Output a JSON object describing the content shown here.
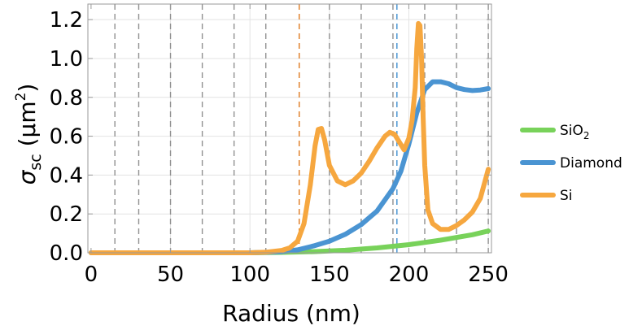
{
  "chart_data": {
    "type": "line",
    "xlabel": "Radius (nm)",
    "ylabel": {
      "sigma": "σ",
      "sub": "sc",
      "unit_open": " (μm",
      "unit_sup": "2",
      "unit_close": ")"
    },
    "xlim": [
      -2,
      252
    ],
    "ylim": [
      0,
      1.28
    ],
    "xticks": [
      0,
      50,
      100,
      150,
      200,
      250
    ],
    "xtick_labels": [
      "0",
      "50",
      "100",
      "150",
      "200",
      "250"
    ],
    "yticks": [
      0.0,
      0.2,
      0.4,
      0.6,
      0.8,
      1.0,
      1.2
    ],
    "ytick_labels": [
      "0.0",
      "0.2",
      "0.4",
      "0.6",
      "0.8",
      "1.0",
      "1.2"
    ],
    "grid": true,
    "legend_position": "right",
    "vertical_reference_lines": [
      {
        "x": 15,
        "color": "#909090"
      },
      {
        "x": 30,
        "color": "#909090"
      },
      {
        "x": 50,
        "color": "#909090"
      },
      {
        "x": 70,
        "color": "#909090"
      },
      {
        "x": 90,
        "color": "#909090"
      },
      {
        "x": 110,
        "color": "#909090"
      },
      {
        "x": 131,
        "color": "#e07a1e"
      },
      {
        "x": 150,
        "color": "#909090"
      },
      {
        "x": 170,
        "color": "#909090"
      },
      {
        "x": 190,
        "color": "#909090"
      },
      {
        "x": 192.5,
        "color": "#3e8ed0"
      },
      {
        "x": 210,
        "color": "#909090"
      },
      {
        "x": 230,
        "color": "#909090"
      },
      {
        "x": 250,
        "color": "#909090"
      }
    ],
    "series": [
      {
        "name": "SiO2",
        "legend_label": {
          "main": "SiO",
          "sub": "2"
        },
        "color": "#78d25a",
        "x": [
          0,
          100,
          120,
          140,
          160,
          180,
          200,
          220,
          240,
          250
        ],
        "y": [
          0.0,
          0.0,
          0.002,
          0.006,
          0.013,
          0.025,
          0.042,
          0.065,
          0.093,
          0.112
        ]
      },
      {
        "name": "Diamond",
        "legend_label": {
          "main": "Diamond",
          "sub": ""
        },
        "color": "#4a94d2",
        "x": [
          0,
          100,
          110,
          120,
          130,
          140,
          150,
          160,
          170,
          180,
          190,
          195,
          200,
          205,
          210,
          215,
          220,
          225,
          230,
          235,
          240,
          245,
          250
        ],
        "y": [
          0.0,
          0.0,
          0.002,
          0.006,
          0.015,
          0.035,
          0.06,
          0.095,
          0.145,
          0.215,
          0.33,
          0.42,
          0.56,
          0.72,
          0.84,
          0.88,
          0.88,
          0.87,
          0.85,
          0.84,
          0.835,
          0.838,
          0.845
        ]
      },
      {
        "name": "Si",
        "legend_label": {
          "main": "Si",
          "sub": ""
        },
        "color": "#f6a73f",
        "x": [
          0,
          100,
          110,
          120,
          125,
          130,
          134,
          138,
          141,
          143,
          145,
          147,
          150,
          155,
          160,
          165,
          170,
          175,
          180,
          185,
          188,
          191,
          194,
          197,
          200,
          202,
          204,
          205,
          206,
          207,
          208,
          209,
          210,
          212,
          215,
          220,
          225,
          230,
          235,
          240,
          245,
          250
        ],
        "y": [
          0.0,
          0.0,
          0.003,
          0.012,
          0.025,
          0.06,
          0.15,
          0.35,
          0.55,
          0.635,
          0.64,
          0.58,
          0.45,
          0.37,
          0.35,
          0.37,
          0.41,
          0.47,
          0.54,
          0.6,
          0.62,
          0.61,
          0.57,
          0.53,
          0.59,
          0.68,
          0.85,
          1.05,
          1.18,
          1.17,
          1.0,
          0.7,
          0.45,
          0.22,
          0.15,
          0.12,
          0.12,
          0.14,
          0.17,
          0.21,
          0.28,
          0.43
        ]
      }
    ]
  }
}
